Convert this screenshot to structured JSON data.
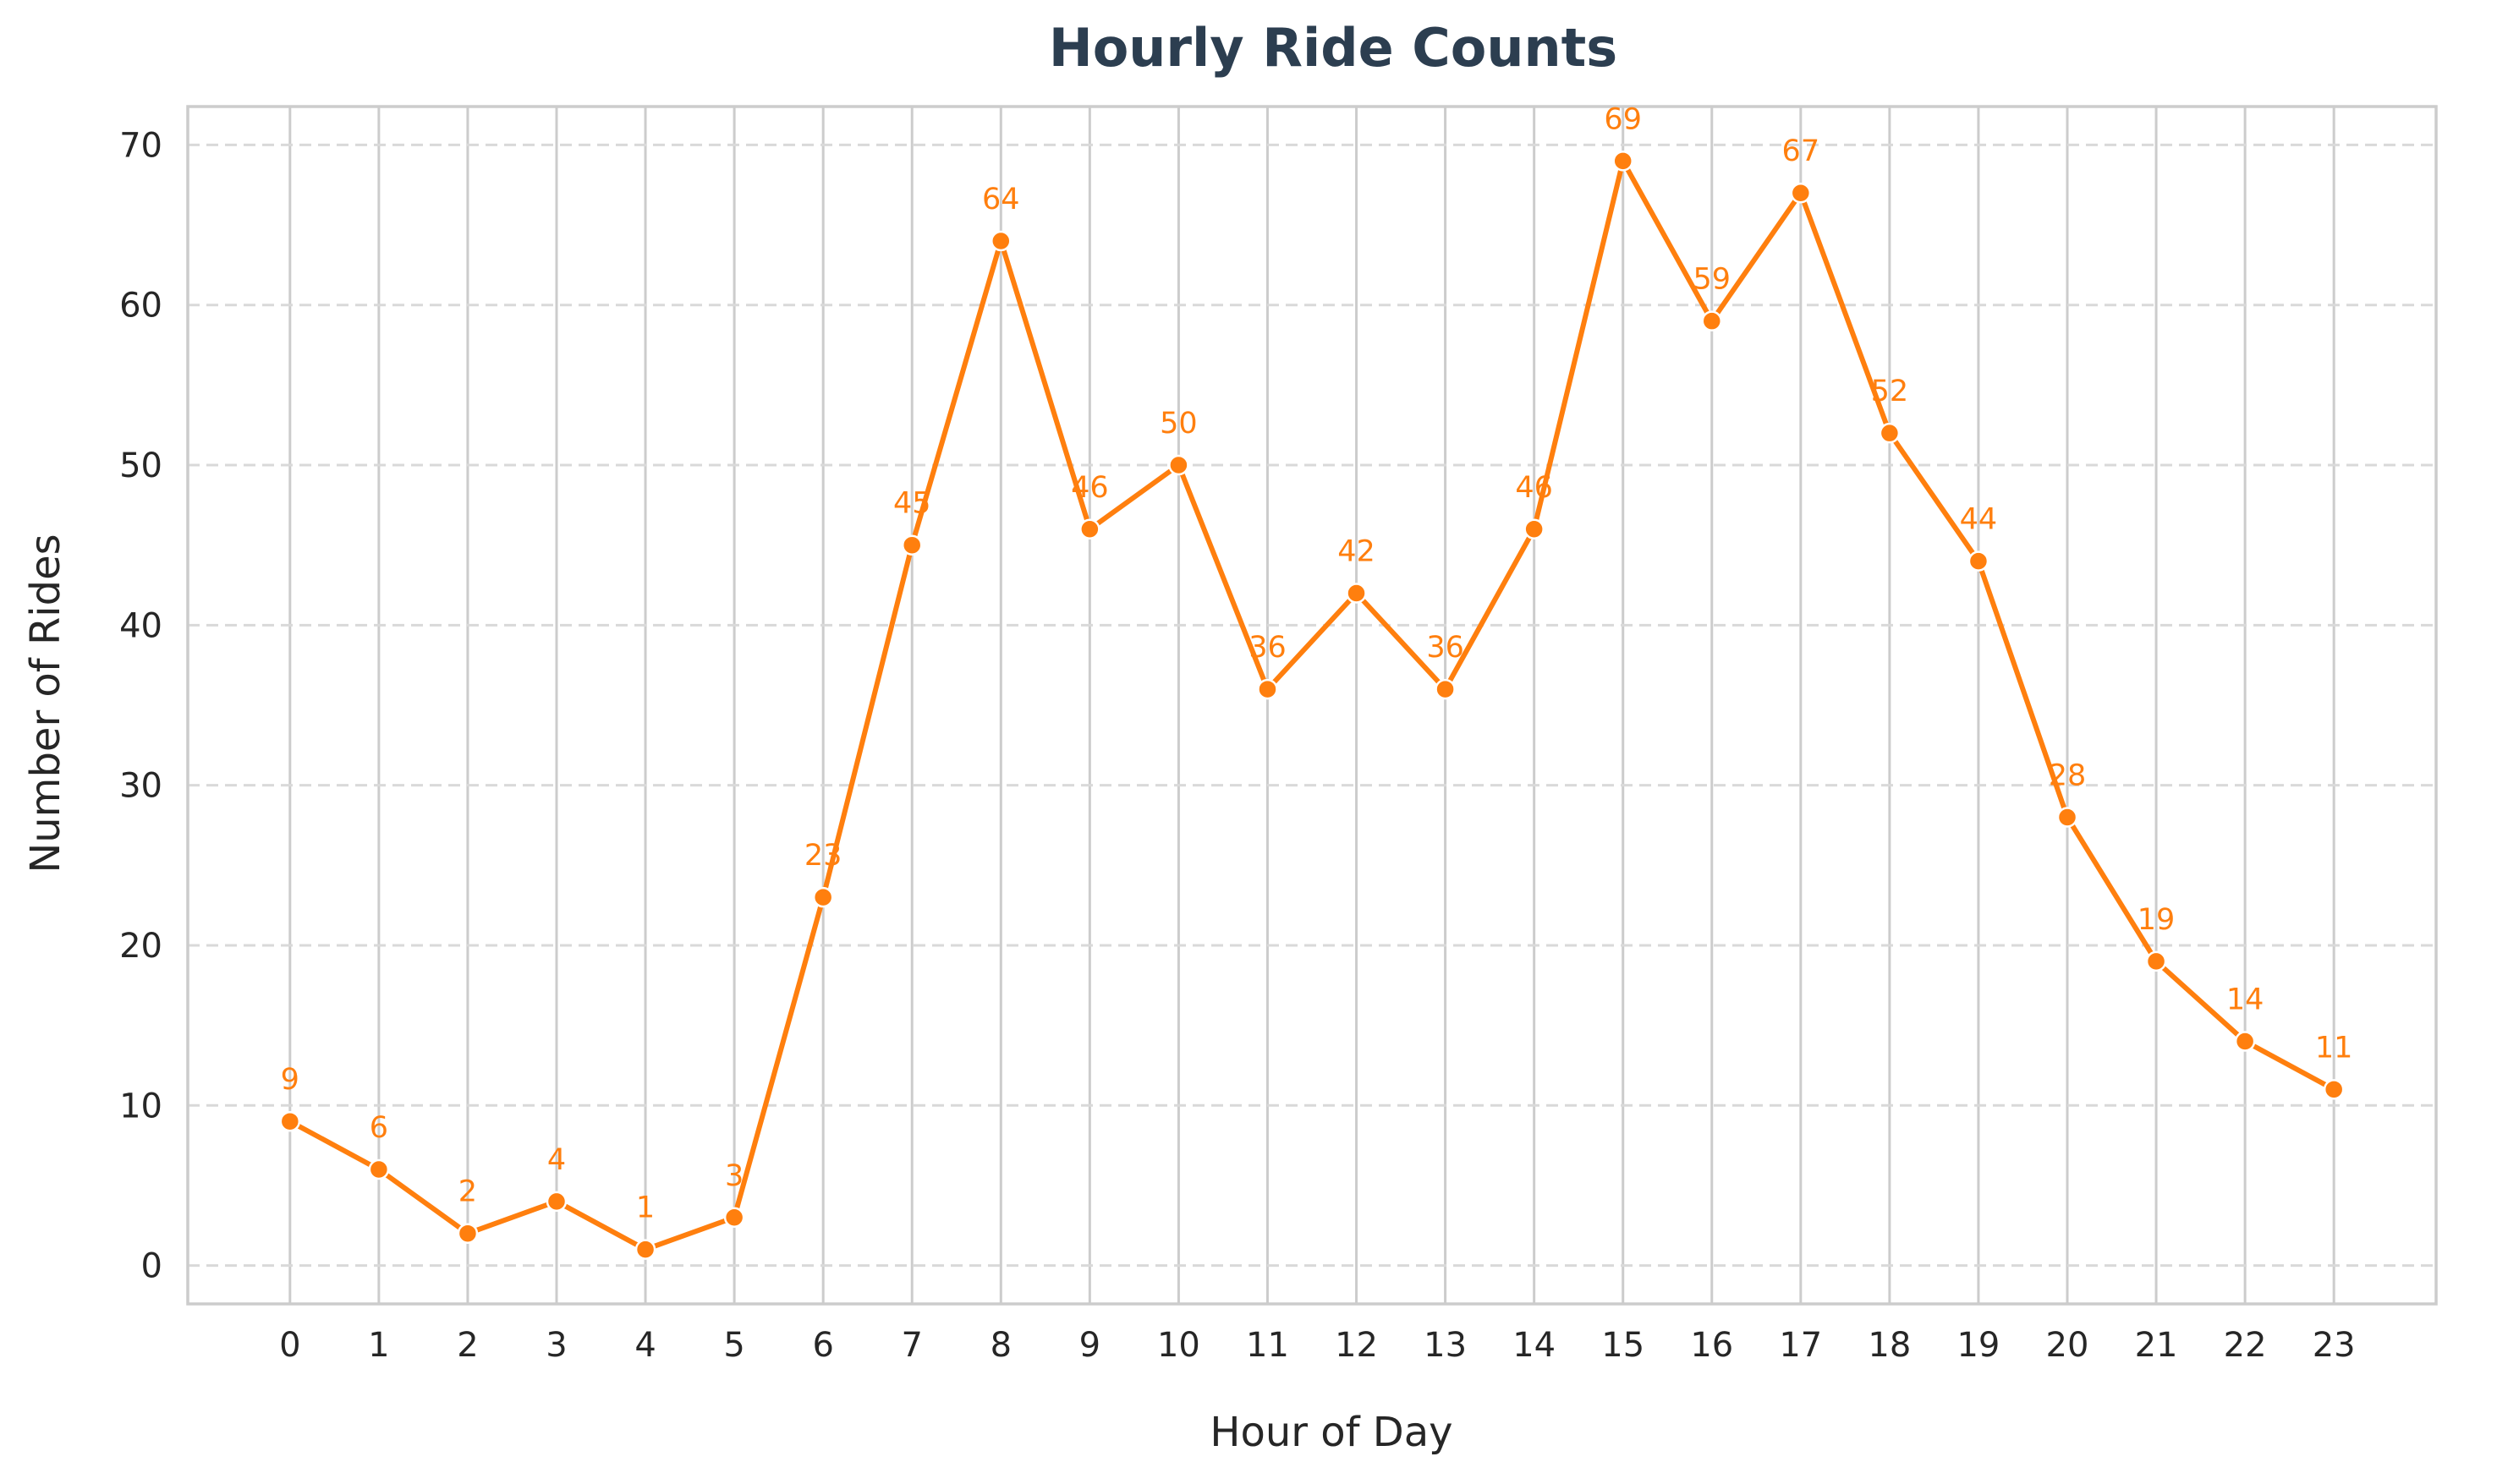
{
  "chart_data": {
    "type": "line",
    "title": "Hourly Ride Counts",
    "xlabel": "Hour of Day",
    "ylabel": "Number of Rides",
    "x": [
      0,
      1,
      2,
      3,
      4,
      5,
      6,
      7,
      8,
      9,
      10,
      11,
      12,
      13,
      14,
      15,
      16,
      17,
      18,
      19,
      20,
      21,
      22,
      23
    ],
    "x_tick_labels": [
      "0",
      "1",
      "2",
      "3",
      "4",
      "5",
      "6",
      "7",
      "8",
      "9",
      "10",
      "11",
      "12",
      "13",
      "14",
      "15",
      "16",
      "17",
      "18",
      "19",
      "20",
      "21",
      "22",
      "23"
    ],
    "series": [
      {
        "values": [
          9,
          6,
          2,
          4,
          1,
          3,
          23,
          45,
          64,
          46,
          50,
          36,
          42,
          36,
          46,
          69,
          59,
          67,
          52,
          44,
          28,
          19,
          14,
          11
        ],
        "color": "#ff7f0e",
        "marker": "circle",
        "data_labels": [
          "9",
          "6",
          "2",
          "4",
          "1",
          "3",
          "23",
          "45",
          "64",
          "46",
          "50",
          "36",
          "42",
          "36",
          "46",
          "69",
          "59",
          "67",
          "52",
          "44",
          "28",
          "19",
          "14",
          "11"
        ]
      }
    ],
    "xlim": [
      -1.15,
      24.15
    ],
    "ylim": [
      -2.4,
      72.4
    ],
    "y_ticks": [
      0,
      10,
      20,
      30,
      40,
      50,
      60,
      70
    ],
    "y_tick_labels": [
      "0",
      "10",
      "20",
      "30",
      "40",
      "50",
      "60",
      "70"
    ],
    "grid": {
      "x": "solid",
      "y": "dashed"
    },
    "legend": "none",
    "colors": {
      "series": "#ff7f0e",
      "title": "#2c3e50",
      "text": "#262626",
      "grid": "#d9d9d9",
      "axes_edge": "#cccccc"
    }
  }
}
